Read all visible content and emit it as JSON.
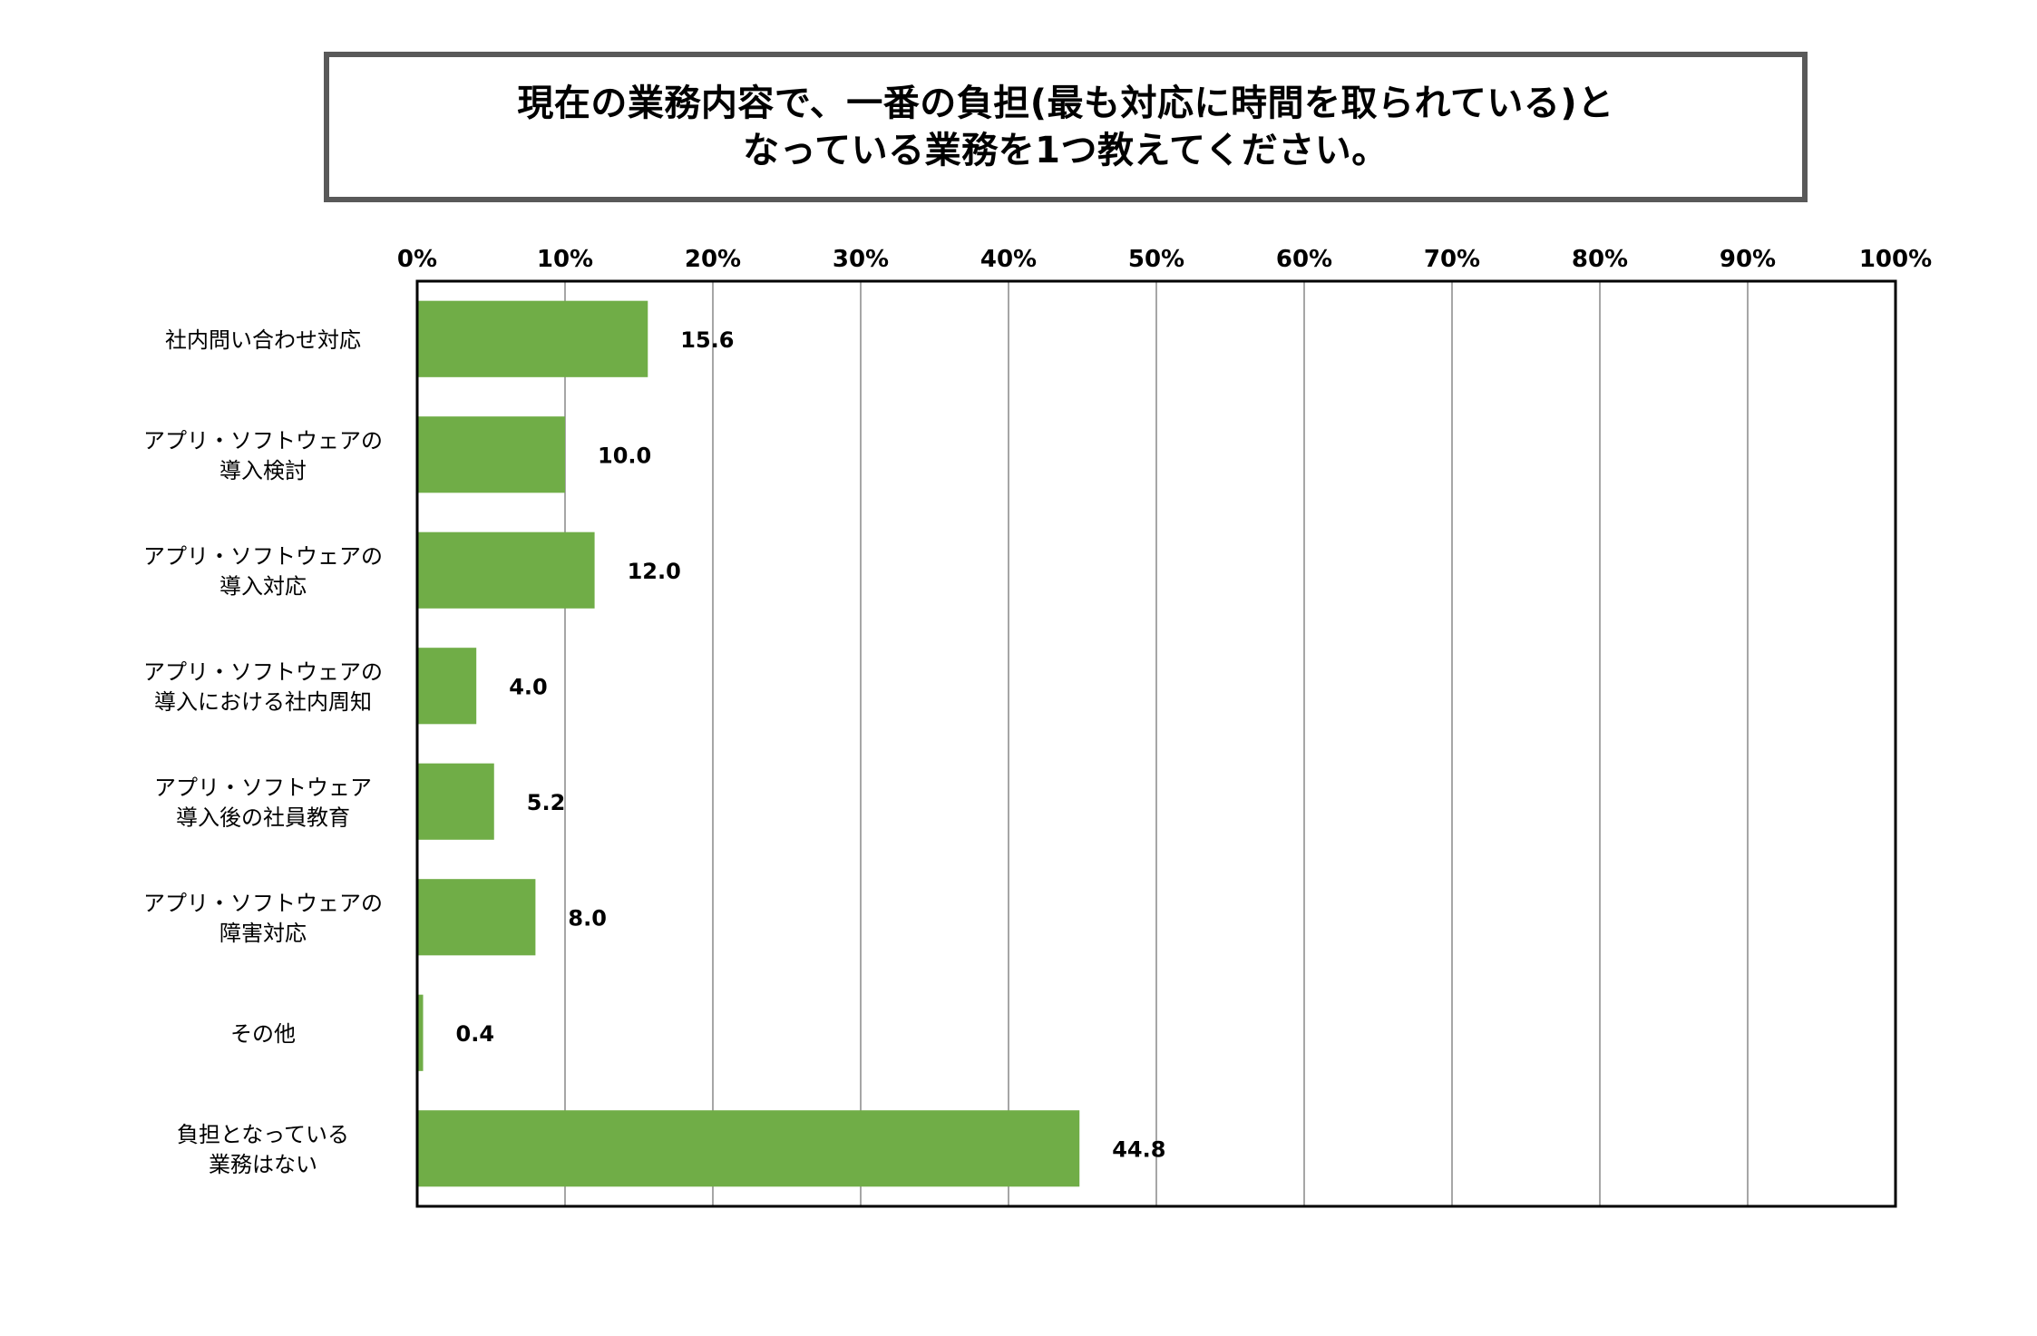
{
  "chart_data": {
    "type": "bar",
    "orientation": "horizontal",
    "title_lines": [
      "現在の業務内容で、一番の負担(最も対応に時間を取られている)と",
      "なっている業務を1つ教えてください。"
    ],
    "categories": [
      [
        "社内問い合わせ対応"
      ],
      [
        "アプリ・ソフトウェアの",
        "導入検討"
      ],
      [
        "アプリ・ソフトウェアの",
        "導入対応"
      ],
      [
        "アプリ・ソフトウェアの",
        "導入における社内周知"
      ],
      [
        "アプリ・ソフトウェア",
        "導入後の社員教育"
      ],
      [
        "アプリ・ソフトウェアの",
        "障害対応"
      ],
      [
        "その他"
      ],
      [
        "負担となっている",
        "業務はない"
      ]
    ],
    "values": [
      15.6,
      10.0,
      12.0,
      4.0,
      5.2,
      8.0,
      0.4,
      44.8
    ],
    "value_labels": [
      "15.6",
      "10.0",
      "12.0",
      "4.0",
      "5.2",
      "8.0",
      "0.4",
      "44.8"
    ],
    "xlim": [
      0,
      100
    ],
    "xticks": [
      "0%",
      "10%",
      "20%",
      "30%",
      "40%",
      "50%",
      "60%",
      "70%",
      "80%",
      "90%",
      "100%"
    ],
    "x_axis_position": "top",
    "grid": true,
    "legend": "none",
    "bar_color": "#70AD47",
    "grid_color": "#A6A6A6",
    "frame_color": "#000000"
  }
}
